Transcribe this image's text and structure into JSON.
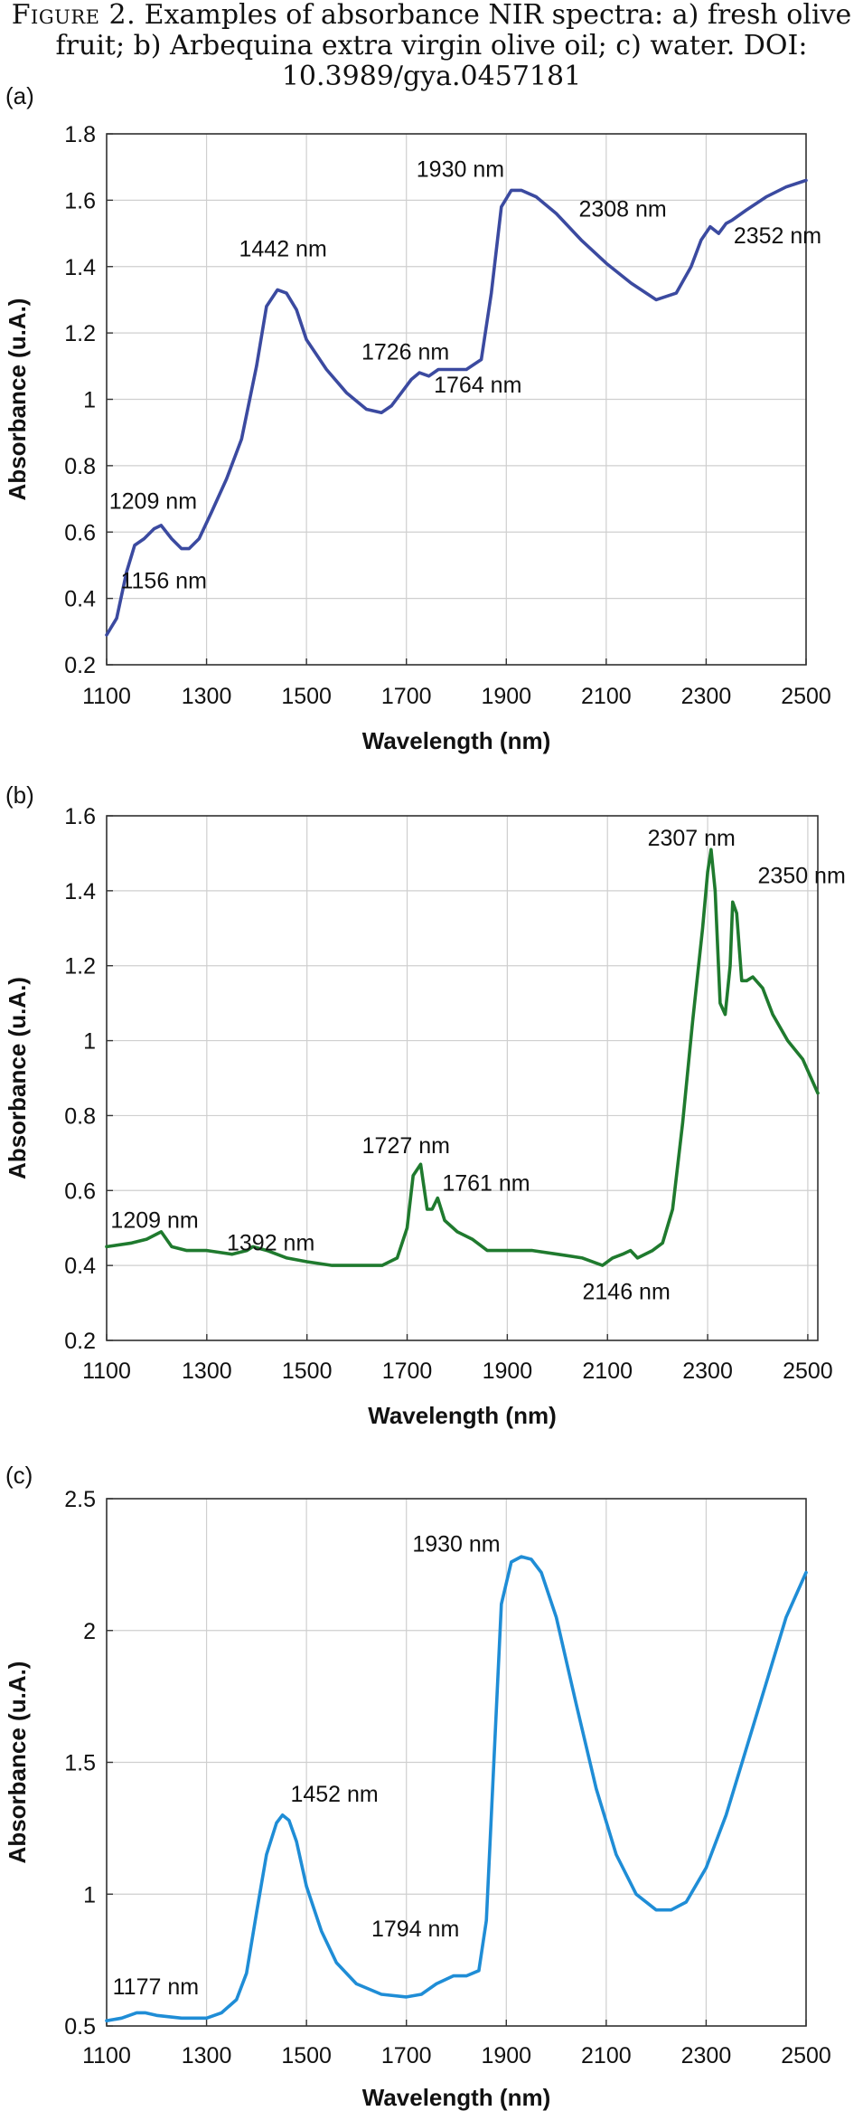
{
  "caption": {
    "figure_label": "Figure 2.",
    "text": "Examples of absorbance NIR spectra: a) fresh olive fruit; b) Arbequina extra virgin olive oil; c) water.",
    "doi": "DOI: 10.3989/gya.0457181"
  },
  "chart_data": [
    {
      "type": "line",
      "panel_label": "(a)",
      "xlabel": "Wavelength (nm)",
      "ylabel": "Absorbance (u.A.)",
      "xlim": [
        1100,
        2500
      ],
      "ylim": [
        0.2,
        1.8
      ],
      "xticks": [
        1100,
        1300,
        1500,
        1700,
        1900,
        2100,
        2300,
        2500
      ],
      "yticks": [
        0.2,
        0.4,
        0.6,
        0.8,
        1,
        1.2,
        1.4,
        1.6,
        1.8
      ],
      "ytick_labels": [
        "0.2",
        "0.4",
        "0.6",
        "0.8",
        "1",
        "1.2",
        "1.4",
        "1.6",
        "1.8"
      ],
      "grid": true,
      "color": "#3b4aa0",
      "series": [
        {
          "x": [
            1100,
            1120,
            1140,
            1156,
            1175,
            1195,
            1209,
            1230,
            1250,
            1265,
            1285,
            1310,
            1340,
            1370,
            1400,
            1420,
            1442,
            1460,
            1480,
            1500,
            1540,
            1580,
            1620,
            1650,
            1670,
            1690,
            1710,
            1726,
            1745,
            1764,
            1790,
            1820,
            1850,
            1870,
            1890,
            1910,
            1930,
            1960,
            2000,
            2050,
            2100,
            2150,
            2200,
            2240,
            2270,
            2290,
            2308,
            2325,
            2340,
            2352,
            2380,
            2420,
            2460,
            2500
          ],
          "y": [
            0.29,
            0.34,
            0.48,
            0.56,
            0.58,
            0.61,
            0.62,
            0.58,
            0.55,
            0.55,
            0.58,
            0.66,
            0.76,
            0.88,
            1.1,
            1.28,
            1.33,
            1.32,
            1.27,
            1.18,
            1.09,
            1.02,
            0.97,
            0.96,
            0.98,
            1.02,
            1.06,
            1.08,
            1.07,
            1.09,
            1.09,
            1.09,
            1.12,
            1.32,
            1.58,
            1.63,
            1.63,
            1.61,
            1.56,
            1.48,
            1.41,
            1.35,
            1.3,
            1.32,
            1.4,
            1.48,
            1.52,
            1.5,
            1.53,
            1.54,
            1.57,
            1.61,
            1.64,
            1.66
          ]
        }
      ],
      "annotations": [
        {
          "text": "1156 nm",
          "x": 1128,
          "y": 0.43
        },
        {
          "text": "1209 nm",
          "x": 1105,
          "y": 0.67
        },
        {
          "text": "1442 nm",
          "x": 1365,
          "y": 1.43
        },
        {
          "text": "1726 nm",
          "x": 1610,
          "y": 1.12
        },
        {
          "text": "1764 nm",
          "x": 1755,
          "y": 1.02
        },
        {
          "text": "1930 nm",
          "x": 1720,
          "y": 1.67
        },
        {
          "text": "2308 nm",
          "x": 2045,
          "y": 1.55
        },
        {
          "text": "2352 nm",
          "x": 2355,
          "y": 1.47
        }
      ]
    },
    {
      "type": "line",
      "panel_label": "(b)",
      "xlabel": "Wavelength (nm)",
      "ylabel": "Absorbance (u.A.)",
      "xlim": [
        1100,
        2520
      ],
      "ylim": [
        0.2,
        1.6
      ],
      "xticks": [
        1100,
        1300,
        1500,
        1700,
        1900,
        2100,
        2300,
        2500
      ],
      "yticks": [
        0.2,
        0.4,
        0.6,
        0.8,
        1,
        1.2,
        1.4,
        1.6
      ],
      "ytick_labels": [
        "0.2",
        "0.4",
        "0.6",
        "0.8",
        "1",
        "1.2",
        "1.4",
        "1.6"
      ],
      "grid": true,
      "color": "#1f7a2e",
      "series": [
        {
          "x": [
            1100,
            1150,
            1180,
            1209,
            1230,
            1260,
            1300,
            1350,
            1380,
            1392,
            1420,
            1460,
            1500,
            1550,
            1600,
            1650,
            1680,
            1700,
            1712,
            1727,
            1740,
            1750,
            1761,
            1775,
            1800,
            1830,
            1860,
            1900,
            1950,
            2000,
            2050,
            2090,
            2110,
            2130,
            2146,
            2160,
            2190,
            2210,
            2230,
            2250,
            2270,
            2290,
            2300,
            2307,
            2315,
            2325,
            2335,
            2345,
            2350,
            2358,
            2368,
            2378,
            2390,
            2410,
            2430,
            2460,
            2490,
            2520
          ],
          "y": [
            0.45,
            0.46,
            0.47,
            0.49,
            0.45,
            0.44,
            0.44,
            0.43,
            0.44,
            0.45,
            0.44,
            0.42,
            0.41,
            0.4,
            0.4,
            0.4,
            0.42,
            0.5,
            0.64,
            0.67,
            0.55,
            0.55,
            0.58,
            0.52,
            0.49,
            0.47,
            0.44,
            0.44,
            0.44,
            0.43,
            0.42,
            0.4,
            0.42,
            0.43,
            0.44,
            0.42,
            0.44,
            0.46,
            0.55,
            0.78,
            1.05,
            1.3,
            1.45,
            1.51,
            1.4,
            1.1,
            1.07,
            1.2,
            1.37,
            1.34,
            1.16,
            1.16,
            1.17,
            1.14,
            1.07,
            1.0,
            0.95,
            0.86
          ]
        }
      ],
      "annotations": [
        {
          "text": "1209 nm",
          "x": 1108,
          "y": 0.5
        },
        {
          "text": "1392 nm",
          "x": 1340,
          "y": 0.44
        },
        {
          "text": "1727 nm",
          "x": 1610,
          "y": 0.7
        },
        {
          "text": "1761 nm",
          "x": 1770,
          "y": 0.6
        },
        {
          "text": "2146 nm",
          "x": 2050,
          "y": 0.31
        },
        {
          "text": "2307 nm",
          "x": 2180,
          "y": 1.52
        },
        {
          "text": "2350 nm",
          "x": 2400,
          "y": 1.42
        }
      ]
    },
    {
      "type": "line",
      "panel_label": "(c)",
      "xlabel": "Wavelength (nm)",
      "ylabel": "Absorbance (u.A.)",
      "xlim": [
        1100,
        2500
      ],
      "ylim": [
        0.5,
        2.5
      ],
      "xticks": [
        1100,
        1300,
        1500,
        1700,
        1900,
        2100,
        2300,
        2500
      ],
      "yticks": [
        0.5,
        1,
        1.5,
        2,
        2.5
      ],
      "ytick_labels": [
        "0.5",
        "1",
        "1.5",
        "2",
        "2.5"
      ],
      "grid": true,
      "color": "#1f8dd6",
      "series": [
        {
          "x": [
            1100,
            1130,
            1160,
            1177,
            1200,
            1250,
            1300,
            1330,
            1360,
            1380,
            1400,
            1420,
            1440,
            1452,
            1465,
            1480,
            1500,
            1530,
            1560,
            1600,
            1650,
            1700,
            1730,
            1760,
            1794,
            1820,
            1845,
            1860,
            1875,
            1890,
            1910,
            1930,
            1950,
            1970,
            2000,
            2040,
            2080,
            2120,
            2160,
            2200,
            2230,
            2260,
            2300,
            2340,
            2380,
            2420,
            2460,
            2500
          ],
          "y": [
            0.52,
            0.53,
            0.55,
            0.55,
            0.54,
            0.53,
            0.53,
            0.55,
            0.6,
            0.7,
            0.93,
            1.15,
            1.27,
            1.3,
            1.28,
            1.2,
            1.03,
            0.86,
            0.74,
            0.66,
            0.62,
            0.61,
            0.62,
            0.66,
            0.69,
            0.69,
            0.71,
            0.9,
            1.5,
            2.1,
            2.26,
            2.28,
            2.27,
            2.22,
            2.05,
            1.72,
            1.4,
            1.15,
            1.0,
            0.94,
            0.94,
            0.97,
            1.1,
            1.3,
            1.55,
            1.8,
            2.05,
            2.22
          ]
        }
      ],
      "annotations": [
        {
          "text": "1177 nm",
          "x": 1112,
          "y": 0.62
        },
        {
          "text": "1452 nm",
          "x": 1468,
          "y": 1.35
        },
        {
          "text": "1794 nm",
          "x": 1630,
          "y": 0.84
        },
        {
          "text": "1930 nm",
          "x": 1712,
          "y": 2.3
        }
      ]
    }
  ]
}
